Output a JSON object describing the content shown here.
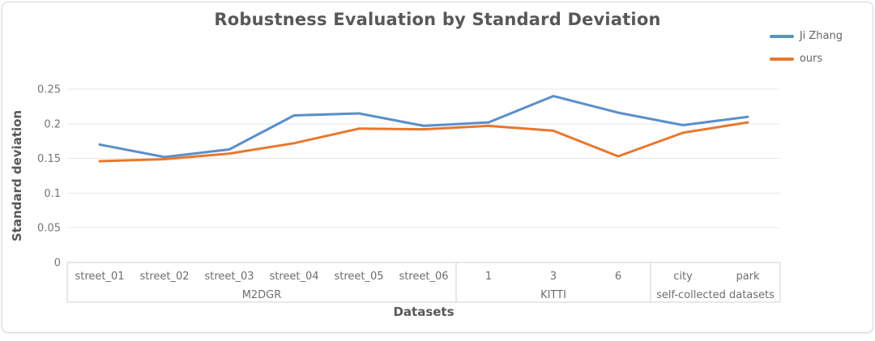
{
  "chart_data": {
    "type": "line",
    "title": "Robustness Evaluation by Standard Deviation",
    "xlabel": "Datasets",
    "ylabel": "Standard deviation",
    "ylim": [
      0,
      0.25
    ],
    "yticks": [
      0,
      0.05,
      0.1,
      0.15,
      0.2,
      0.25
    ],
    "grid": "horizontal",
    "legend_position": "top-right",
    "categories": [
      "street_01",
      "street_02",
      "street_03",
      "street_04",
      "street_05",
      "street_06",
      "1",
      "3",
      "6",
      "city",
      "park"
    ],
    "category_groups": [
      {
        "label": "M2DGR",
        "span": 6
      },
      {
        "label": "KITTI",
        "span": 3
      },
      {
        "label": "self-collected datasets",
        "span": 2
      }
    ],
    "series": [
      {
        "name": "Ji Zhang",
        "color": "#5b8fc9",
        "values": [
          0.17,
          0.152,
          0.163,
          0.212,
          0.215,
          0.197,
          0.202,
          0.24,
          0.216,
          0.198,
          0.21
        ]
      },
      {
        "name": "ours",
        "color": "#e8772e",
        "values": [
          0.146,
          0.149,
          0.157,
          0.172,
          0.193,
          0.192,
          0.197,
          0.19,
          0.153,
          0.187,
          0.202
        ]
      }
    ],
    "colors": {
      "title_text": "#58585a",
      "tick_text": "#757575",
      "category_text": "#6e6e6e",
      "gridline": "#e7e7e7",
      "band_border": "#d0d0d0"
    }
  }
}
